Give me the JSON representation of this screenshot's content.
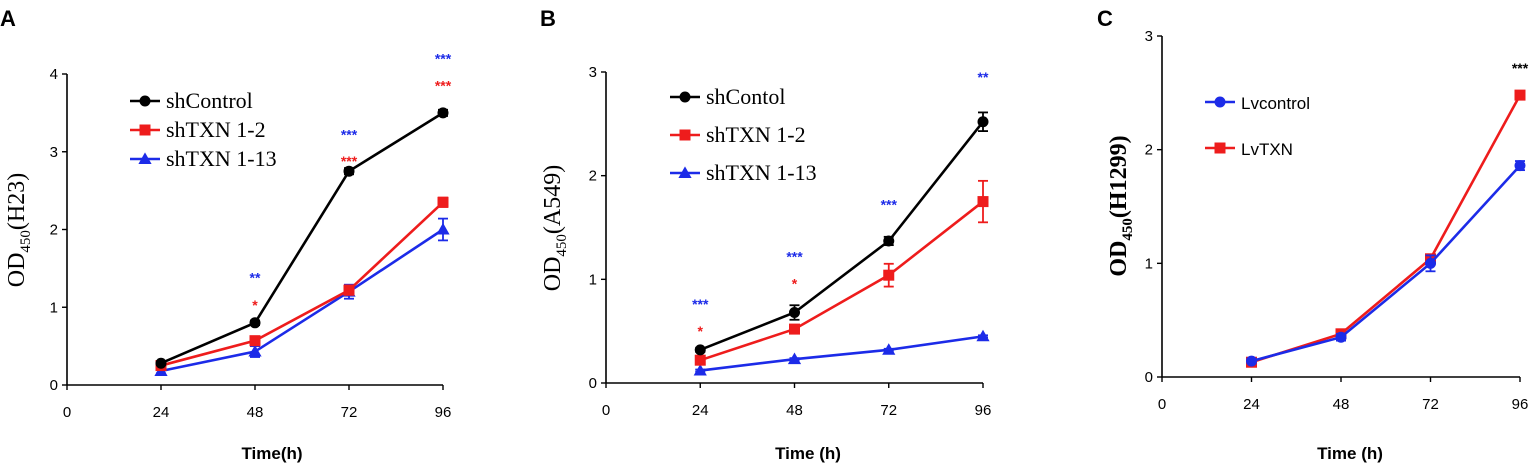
{
  "colors": {
    "black": "#000000",
    "red": "#ee1c1c",
    "blue": "#1c2be8"
  },
  "chart_data": [
    {
      "panel": "A",
      "type": "line",
      "xlabel": "Time(h)",
      "ylabel": {
        "main": "OD",
        "sub": "450",
        "suffix": "(H23)"
      },
      "x": [
        24,
        48,
        72,
        96
      ],
      "xticks": [
        0,
        24,
        48,
        72,
        96
      ],
      "yticks": [
        0,
        1,
        2,
        3,
        4
      ],
      "xlim": [
        0,
        96
      ],
      "ylim": [
        0,
        4
      ],
      "legend_position": "top-left",
      "series": [
        {
          "name": "shControl",
          "color": "#000000",
          "marker": "circle",
          "values": [
            0.28,
            0.8,
            2.75,
            3.5
          ],
          "err": [
            0.02,
            0.03,
            0.04,
            0.04
          ]
        },
        {
          "name": "shTXN 1-2",
          "color": "#ee1c1c",
          "marker": "square",
          "values": [
            0.25,
            0.57,
            1.22,
            2.35
          ],
          "err": [
            0.03,
            0.04,
            0.06,
            0.06
          ]
        },
        {
          "name": "shTXN 1-13",
          "color": "#1c2be8",
          "marker": "triangle",
          "values": [
            0.18,
            0.43,
            1.2,
            2.0
          ],
          "err": [
            0.03,
            0.07,
            0.09,
            0.14
          ]
        }
      ],
      "annotations": [
        {
          "x": 48,
          "y": 1.38,
          "text": "**",
          "color": "#1c2be8"
        },
        {
          "x": 48,
          "y": 1.03,
          "text": "*",
          "color": "#ee1c1c"
        },
        {
          "x": 72,
          "y": 3.22,
          "text": "***",
          "color": "#1c2be8"
        },
        {
          "x": 72,
          "y": 2.88,
          "text": "***",
          "color": "#ee1c1c"
        },
        {
          "x": 96,
          "y": 4.2,
          "text": "***",
          "color": "#1c2be8"
        },
        {
          "x": 96,
          "y": 3.85,
          "text": "***",
          "color": "#ee1c1c"
        }
      ]
    },
    {
      "panel": "B",
      "type": "line",
      "xlabel": "Time (h)",
      "ylabel": {
        "main": "OD",
        "sub": "450",
        "suffix": "(A549)"
      },
      "x": [
        24,
        48,
        72,
        96
      ],
      "xticks": [
        0,
        24,
        48,
        72,
        96
      ],
      "yticks": [
        0,
        1,
        2,
        3
      ],
      "xlim": [
        0,
        96
      ],
      "ylim": [
        0,
        3
      ],
      "legend_position": "top-left",
      "series": [
        {
          "name": "shContol",
          "color": "#000000",
          "marker": "circle",
          "values": [
            0.32,
            0.68,
            1.37,
            2.52
          ],
          "err": [
            0.02,
            0.07,
            0.04,
            0.09
          ]
        },
        {
          "name": "shTXN 1-2",
          "color": "#ee1c1c",
          "marker": "square",
          "values": [
            0.22,
            0.52,
            1.04,
            1.75
          ],
          "err": [
            0.02,
            0.04,
            0.11,
            0.2
          ]
        },
        {
          "name": "shTXN 1-13",
          "color": "#1c2be8",
          "marker": "triangle",
          "values": [
            0.12,
            0.23,
            0.32,
            0.45
          ],
          "err": [
            0.01,
            0.01,
            0.01,
            0.01
          ]
        }
      ],
      "annotations": [
        {
          "x": 24,
          "y": 0.76,
          "text": "***",
          "color": "#1c2be8"
        },
        {
          "x": 24,
          "y": 0.5,
          "text": "*",
          "color": "#ee1c1c"
        },
        {
          "x": 48,
          "y": 1.22,
          "text": "***",
          "color": "#1c2be8"
        },
        {
          "x": 48,
          "y": 0.96,
          "text": "*",
          "color": "#ee1c1c"
        },
        {
          "x": 72,
          "y": 1.72,
          "text": "***",
          "color": "#1c2be8"
        },
        {
          "x": 96,
          "y": 2.95,
          "text": "**",
          "color": "#1c2be8"
        }
      ]
    },
    {
      "panel": "C",
      "type": "line",
      "xlabel": "Time (h)",
      "ylabel": {
        "main": "OD",
        "sub": "450",
        "suffix": "(H1299)"
      },
      "x": [
        24,
        48,
        72,
        96
      ],
      "xticks": [
        0,
        24,
        48,
        72,
        96
      ],
      "yticks": [
        0,
        1,
        2,
        3
      ],
      "xlim": [
        0,
        96
      ],
      "ylim": [
        0,
        3
      ],
      "legend_position": "top-left",
      "series": [
        {
          "name": "Lvcontrol",
          "color": "#1c2be8",
          "marker": "circle",
          "values": [
            0.14,
            0.35,
            1.0,
            1.86
          ],
          "err": [
            0.02,
            0.03,
            0.07,
            0.04
          ]
        },
        {
          "name": "LvTXN",
          "color": "#ee1c1c",
          "marker": "square",
          "values": [
            0.13,
            0.38,
            1.04,
            2.48
          ],
          "err": [
            0.02,
            0.03,
            0.03,
            0.03
          ]
        }
      ],
      "annotations": [
        {
          "x": 96,
          "y": 2.72,
          "text": "***",
          "color": "#000000"
        }
      ]
    }
  ]
}
